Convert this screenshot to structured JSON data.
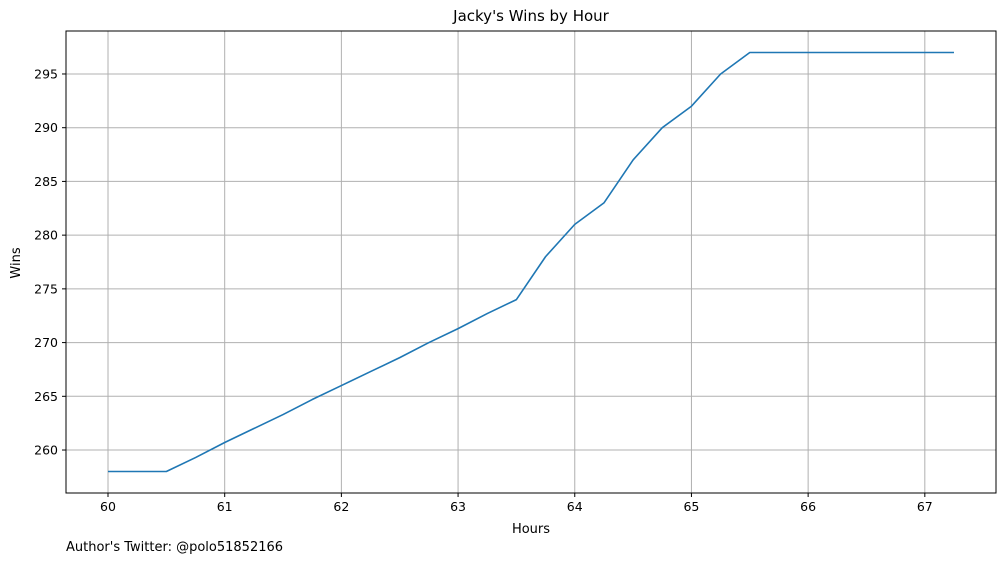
{
  "chart_data": {
    "type": "line",
    "title": "Jacky's Wins by Hour",
    "xlabel": "Hours",
    "ylabel": "Wins",
    "xlim": [
      59.64,
      67.61
    ],
    "ylim": [
      256.0,
      299.0
    ],
    "xticks": [
      60,
      61,
      62,
      63,
      64,
      65,
      66,
      67
    ],
    "yticks": [
      260,
      265,
      270,
      275,
      280,
      285,
      290,
      295
    ],
    "grid": true,
    "series": [
      {
        "color": "#1f77b4",
        "x": [
          60.0,
          60.25,
          60.5,
          60.75,
          61.0,
          61.25,
          61.5,
          61.75,
          62.0,
          62.25,
          62.5,
          62.75,
          63.0,
          63.25,
          63.5,
          63.75,
          64.0,
          64.25,
          64.5,
          64.75,
          65.0,
          65.25,
          65.5,
          65.75,
          66.0,
          66.25,
          66.5,
          66.75,
          67.0,
          67.25
        ],
        "y": [
          258,
          258,
          258,
          259.3,
          260.7,
          262.0,
          263.3,
          264.7,
          266.0,
          267.3,
          268.6,
          270.0,
          271.3,
          272.7,
          274,
          278,
          281,
          283,
          287,
          290,
          292,
          295,
          297,
          297,
          297,
          297,
          297,
          297,
          297,
          297
        ]
      }
    ]
  },
  "footer": "Author's Twitter: @polo51852166"
}
